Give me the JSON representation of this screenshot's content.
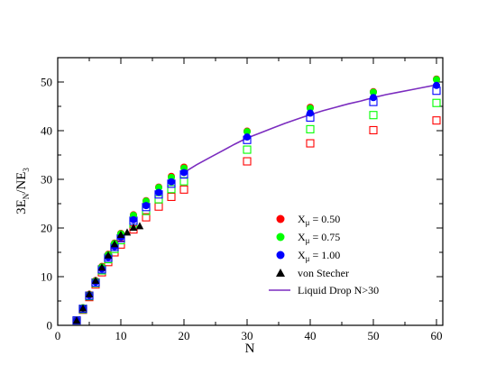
{
  "chart_data": {
    "type": "scatter",
    "xlabel": "N",
    "ylabel": {
      "base": "3E",
      "sub1": "N",
      "mid": "/NE",
      "sub2": "3"
    },
    "xlim": [
      0,
      61
    ],
    "ylim": [
      0,
      55
    ],
    "xticks": [
      0,
      10,
      20,
      30,
      40,
      50,
      60
    ],
    "yticks": [
      0,
      10,
      20,
      30,
      40,
      50
    ],
    "grid": false,
    "legend_position": "lower-right",
    "series": [
      {
        "name": "X_μ = 0.50",
        "name_base": "X",
        "name_sub": "μ",
        "name_rest": " = 0.50",
        "color": "#ff0000",
        "filled": [
          [
            3,
            1.0
          ],
          [
            4,
            3.6
          ],
          [
            5,
            6.4
          ],
          [
            6,
            9.2
          ],
          [
            7,
            12.1
          ],
          [
            8,
            14.6
          ],
          [
            9,
            16.9
          ],
          [
            10,
            18.9
          ],
          [
            12,
            22.7
          ],
          [
            14,
            25.6
          ],
          [
            16,
            28.4
          ],
          [
            18,
            30.6
          ],
          [
            20,
            32.5
          ],
          [
            30,
            39.9
          ],
          [
            40,
            44.8
          ],
          [
            50,
            48.0
          ],
          [
            60,
            50.6
          ]
        ],
        "open": [
          [
            3,
            1.0
          ],
          [
            4,
            3.2
          ],
          [
            5,
            5.8
          ],
          [
            6,
            8.4
          ],
          [
            7,
            10.9
          ],
          [
            8,
            13.0
          ],
          [
            9,
            15.0
          ],
          [
            10,
            16.6
          ],
          [
            12,
            19.7
          ],
          [
            14,
            22.2
          ],
          [
            16,
            24.4
          ],
          [
            18,
            26.4
          ],
          [
            20,
            27.9
          ],
          [
            30,
            33.7
          ],
          [
            40,
            37.4
          ],
          [
            50,
            40.1
          ],
          [
            60,
            42.1
          ]
        ]
      },
      {
        "name": "X_μ = 0.75",
        "name_base": "X",
        "name_sub": "μ",
        "name_rest": " = 0.75",
        "color": "#00ff00",
        "filled": [
          [
            3,
            1.0
          ],
          [
            4,
            3.6
          ],
          [
            5,
            6.3
          ],
          [
            6,
            9.1
          ],
          [
            7,
            12.0
          ],
          [
            8,
            14.5
          ],
          [
            9,
            16.8
          ],
          [
            10,
            18.8
          ],
          [
            12,
            22.6
          ],
          [
            14,
            25.5
          ],
          [
            16,
            28.3
          ],
          [
            18,
            30.4
          ],
          [
            20,
            32.3
          ],
          [
            30,
            39.8
          ],
          [
            40,
            44.6
          ],
          [
            50,
            47.9
          ],
          [
            60,
            50.5
          ]
        ],
        "open": [
          [
            3,
            1.0
          ],
          [
            4,
            3.3
          ],
          [
            5,
            6.0
          ],
          [
            6,
            8.7
          ],
          [
            7,
            11.3
          ],
          [
            8,
            13.6
          ],
          [
            9,
            15.7
          ],
          [
            10,
            17.5
          ],
          [
            12,
            20.9
          ],
          [
            14,
            23.5
          ],
          [
            16,
            25.9
          ],
          [
            18,
            28.0
          ],
          [
            20,
            29.6
          ],
          [
            30,
            36.1
          ],
          [
            40,
            40.3
          ],
          [
            50,
            43.2
          ],
          [
            60,
            45.7
          ]
        ]
      },
      {
        "name": "X_μ = 1.00",
        "name_base": "X",
        "name_sub": "μ",
        "name_rest": " = 1.00",
        "color": "#0000ff",
        "filled": [
          [
            3,
            1.0
          ],
          [
            4,
            3.5
          ],
          [
            5,
            6.2
          ],
          [
            6,
            8.9
          ],
          [
            7,
            11.6
          ],
          [
            8,
            14.0
          ],
          [
            9,
            16.2
          ],
          [
            10,
            18.1
          ],
          [
            12,
            21.7
          ],
          [
            14,
            24.6
          ],
          [
            16,
            27.3
          ],
          [
            18,
            29.5
          ],
          [
            20,
            31.4
          ],
          [
            30,
            38.7
          ],
          [
            40,
            43.6
          ],
          [
            50,
            46.8
          ],
          [
            60,
            49.3
          ]
        ],
        "open": [
          [
            3,
            1.0
          ],
          [
            4,
            3.4
          ],
          [
            5,
            6.1
          ],
          [
            6,
            8.8
          ],
          [
            7,
            11.5
          ],
          [
            8,
            13.9
          ],
          [
            9,
            16.1
          ],
          [
            10,
            17.9
          ],
          [
            12,
            21.5
          ],
          [
            14,
            24.3
          ],
          [
            16,
            26.9
          ],
          [
            18,
            29.1
          ],
          [
            20,
            31.0
          ],
          [
            30,
            38.1
          ],
          [
            40,
            42.7
          ],
          [
            50,
            45.9
          ],
          [
            60,
            48.2
          ]
        ]
      },
      {
        "name": "von Stecher",
        "color": "#000000",
        "marker": "triangle",
        "points": [
          [
            3,
            1.0
          ],
          [
            4,
            3.5
          ],
          [
            5,
            6.4
          ],
          [
            6,
            9.2
          ],
          [
            7,
            11.9
          ],
          [
            8,
            14.4
          ],
          [
            9,
            16.7
          ],
          [
            10,
            18.6
          ],
          [
            11,
            19.1
          ],
          [
            12,
            20.1
          ],
          [
            13,
            20.4
          ]
        ]
      },
      {
        "name": "Liquid Drop N>30",
        "color": "#7b2cbf",
        "marker": "line",
        "line": [
          [
            20,
            31.4
          ],
          [
            22,
            33.0
          ],
          [
            24,
            34.4
          ],
          [
            26,
            35.8
          ],
          [
            28,
            37.2
          ],
          [
            30,
            38.5
          ],
          [
            32,
            39.5
          ],
          [
            34,
            40.5
          ],
          [
            36,
            41.5
          ],
          [
            38,
            42.4
          ],
          [
            40,
            43.3
          ],
          [
            42,
            44.1
          ],
          [
            44,
            44.8
          ],
          [
            46,
            45.5
          ],
          [
            48,
            46.1
          ],
          [
            50,
            46.8
          ],
          [
            52,
            47.4
          ],
          [
            54,
            47.9
          ],
          [
            56,
            48.4
          ],
          [
            58,
            48.9
          ],
          [
            60,
            49.4
          ]
        ]
      }
    ]
  }
}
